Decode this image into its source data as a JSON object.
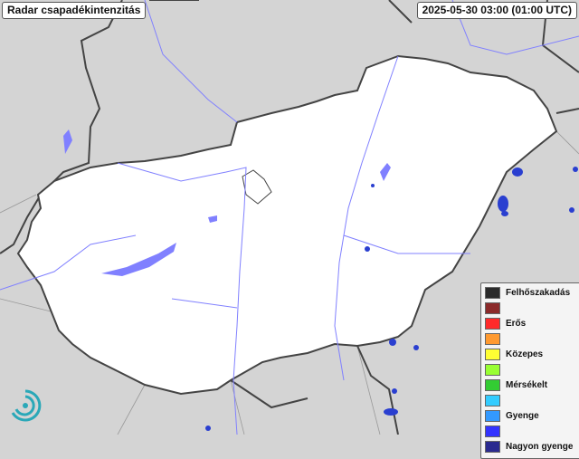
{
  "header": {
    "title": "Radar csapadékintenzitás",
    "timestamp": "2025-05-30 03:00 (01:00 UTC)"
  },
  "legend": {
    "items": [
      {
        "label": "Felhőszakadás",
        "color": "#2b2b2b"
      },
      {
        "label": "",
        "color": "#8b2a2a"
      },
      {
        "label": "Erős",
        "color": "#ff2a2a"
      },
      {
        "label": "",
        "color": "#ff9a30"
      },
      {
        "label": "Közepes",
        "color": "#ffff33"
      },
      {
        "label": "",
        "color": "#99ff33"
      },
      {
        "label": "Mérsékelt",
        "color": "#33cc33"
      },
      {
        "label": "",
        "color": "#33ccff"
      },
      {
        "label": "Gyenge",
        "color": "#3399ff"
      },
      {
        "label": "",
        "color": "#3333ff"
      },
      {
        "label": "Nagyon gyenge",
        "color": "#2a2a8f"
      }
    ]
  },
  "map": {
    "country_fill": "#ffffff",
    "surround_fill": "#d4d4d4",
    "border_color": "#444444",
    "water_color": "#8080ff",
    "precip_color": "#2a3fd0"
  }
}
